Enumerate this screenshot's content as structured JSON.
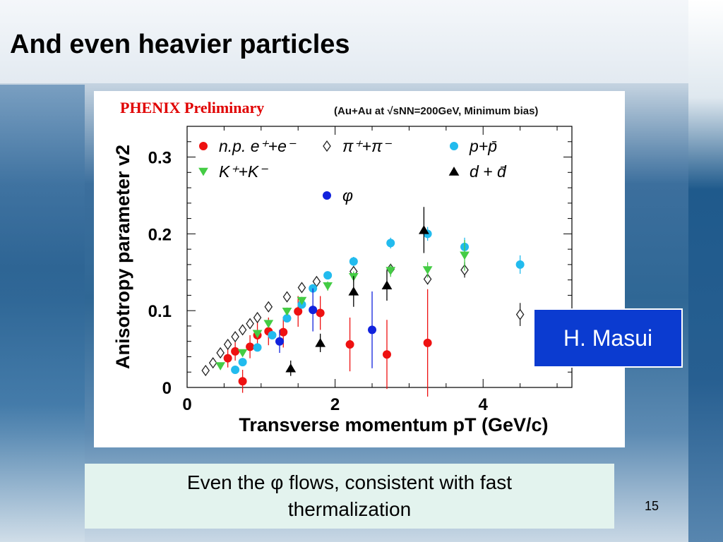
{
  "slide": {
    "title": "And even heavier particles",
    "caption": "Even the φ flows, consistent with fast thermalization",
    "author_label": "H. Masui",
    "page_number": "15"
  },
  "colors": {
    "electron": "#ee1111",
    "pion": "#222222",
    "proton": "#22bbee",
    "kaon": "#44cc44",
    "deuteron": "#000000",
    "phi": "#1122dd",
    "author_box": "#0b3bd0",
    "caption_box": "#e3f3ee"
  },
  "chart_data": {
    "type": "scatter",
    "title": "PHENIX Preliminary",
    "subtitle": "(Au+Au at √sNN=200GeV, Minimum bias)",
    "xlabel": "Transverse momentum pT (GeV/c)",
    "ylabel": "Anisotropy parameter v2",
    "xlim": [
      0,
      5.2
    ],
    "ylim": [
      0,
      0.34
    ],
    "x_ticks": [
      0,
      2,
      4
    ],
    "y_ticks": [
      0,
      0.1,
      0.2,
      0.3
    ],
    "x_tick_labels": [
      "0",
      "2",
      "4"
    ],
    "y_tick_labels": [
      "0",
      "0.1",
      "0.2",
      "0.3"
    ],
    "legend_position": "top",
    "series": [
      {
        "name": "n.p. e⁺+e⁻",
        "marker": "circle",
        "color_key": "electron",
        "points": [
          {
            "x": 0.55,
            "y": 0.038,
            "err": 0.012
          },
          {
            "x": 0.65,
            "y": 0.047,
            "err": 0.012
          },
          {
            "x": 0.75,
            "y": 0.008,
            "err": 0.015
          },
          {
            "x": 0.85,
            "y": 0.053,
            "err": 0.015
          },
          {
            "x": 0.95,
            "y": 0.068,
            "err": 0.02
          },
          {
            "x": 1.1,
            "y": 0.073,
            "err": 0.018
          },
          {
            "x": 1.3,
            "y": 0.072,
            "err": 0.02
          },
          {
            "x": 1.5,
            "y": 0.099,
            "err": 0.02
          },
          {
            "x": 1.8,
            "y": 0.097,
            "err": 0.022
          },
          {
            "x": 2.2,
            "y": 0.056,
            "err": 0.035
          },
          {
            "x": 2.7,
            "y": 0.043,
            "err": 0.045
          },
          {
            "x": 3.25,
            "y": 0.058,
            "err": 0.07
          }
        ]
      },
      {
        "name": "π⁺+π⁻",
        "marker": "diamond",
        "color_key": "pion",
        "points": [
          {
            "x": 0.25,
            "y": 0.022,
            "err": 0.002
          },
          {
            "x": 0.35,
            "y": 0.032,
            "err": 0.002
          },
          {
            "x": 0.45,
            "y": 0.045,
            "err": 0.002
          },
          {
            "x": 0.55,
            "y": 0.056,
            "err": 0.002
          },
          {
            "x": 0.65,
            "y": 0.066,
            "err": 0.002
          },
          {
            "x": 0.75,
            "y": 0.075,
            "err": 0.002
          },
          {
            "x": 0.85,
            "y": 0.083,
            "err": 0.003
          },
          {
            "x": 0.95,
            "y": 0.091,
            "err": 0.003
          },
          {
            "x": 1.1,
            "y": 0.105,
            "err": 0.003
          },
          {
            "x": 1.35,
            "y": 0.118,
            "err": 0.003
          },
          {
            "x": 1.55,
            "y": 0.13,
            "err": 0.004
          },
          {
            "x": 1.75,
            "y": 0.138,
            "err": 0.004
          },
          {
            "x": 2.25,
            "y": 0.151,
            "err": 0.005
          },
          {
            "x": 2.75,
            "y": 0.154,
            "err": 0.006
          },
          {
            "x": 3.25,
            "y": 0.141,
            "err": 0.007
          },
          {
            "x": 3.75,
            "y": 0.153,
            "err": 0.01
          },
          {
            "x": 4.5,
            "y": 0.095,
            "err": 0.015
          }
        ]
      },
      {
        "name": "p+p̄",
        "marker": "circle",
        "color_key": "proton",
        "points": [
          {
            "x": 0.65,
            "y": 0.023,
            "err": 0.003
          },
          {
            "x": 0.75,
            "y": 0.033,
            "err": 0.003
          },
          {
            "x": 0.95,
            "y": 0.052,
            "err": 0.003
          },
          {
            "x": 1.15,
            "y": 0.068,
            "err": 0.003
          },
          {
            "x": 1.35,
            "y": 0.09,
            "err": 0.004
          },
          {
            "x": 1.55,
            "y": 0.108,
            "err": 0.004
          },
          {
            "x": 1.7,
            "y": 0.129,
            "err": 0.005
          },
          {
            "x": 1.9,
            "y": 0.146,
            "err": 0.005
          },
          {
            "x": 2.25,
            "y": 0.164,
            "err": 0.006
          },
          {
            "x": 2.75,
            "y": 0.188,
            "err": 0.007
          },
          {
            "x": 3.25,
            "y": 0.2,
            "err": 0.009
          },
          {
            "x": 3.75,
            "y": 0.183,
            "err": 0.012
          },
          {
            "x": 4.5,
            "y": 0.16,
            "err": 0.012
          }
        ]
      },
      {
        "name": "K⁺+K⁻",
        "marker": "triangle-down",
        "color_key": "kaon",
        "points": [
          {
            "x": 0.45,
            "y": 0.028,
            "err": 0.003
          },
          {
            "x": 0.75,
            "y": 0.045,
            "err": 0.004
          },
          {
            "x": 0.95,
            "y": 0.07,
            "err": 0.004
          },
          {
            "x": 1.1,
            "y": 0.083,
            "err": 0.005
          },
          {
            "x": 1.35,
            "y": 0.099,
            "err": 0.005
          },
          {
            "x": 1.55,
            "y": 0.113,
            "err": 0.005
          },
          {
            "x": 1.9,
            "y": 0.132,
            "err": 0.006
          },
          {
            "x": 2.25,
            "y": 0.144,
            "err": 0.007
          },
          {
            "x": 2.75,
            "y": 0.152,
            "err": 0.008
          },
          {
            "x": 3.25,
            "y": 0.153,
            "err": 0.01
          },
          {
            "x": 3.75,
            "y": 0.172,
            "err": 0.02
          }
        ]
      },
      {
        "name": "d + d̄",
        "marker": "triangle-up",
        "color_key": "deuteron",
        "points": [
          {
            "x": 1.4,
            "y": 0.025,
            "err": 0.01
          },
          {
            "x": 1.8,
            "y": 0.058,
            "err": 0.012
          },
          {
            "x": 2.25,
            "y": 0.125,
            "err": 0.02
          },
          {
            "x": 2.7,
            "y": 0.133,
            "err": 0.02
          },
          {
            "x": 3.2,
            "y": 0.205,
            "err": 0.03
          }
        ]
      },
      {
        "name": "φ",
        "marker": "circle",
        "color_key": "phi",
        "points": [
          {
            "x": 1.25,
            "y": 0.06,
            "err": 0.015
          },
          {
            "x": 1.7,
            "y": 0.101,
            "err": 0.028
          },
          {
            "x": 2.5,
            "y": 0.075,
            "err": 0.05
          }
        ]
      }
    ]
  }
}
